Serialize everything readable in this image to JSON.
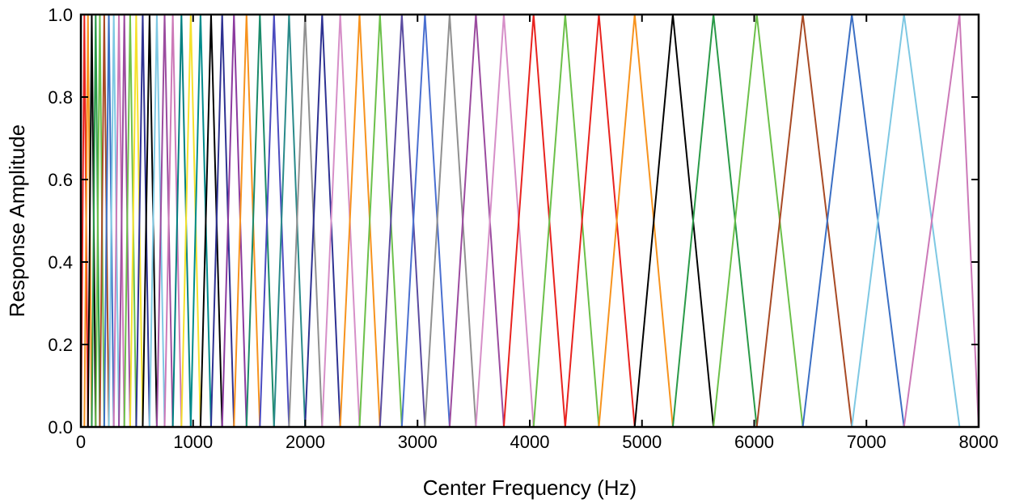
{
  "chart_data": {
    "type": "line",
    "title": "",
    "xlabel": "Center Frequency (Hz)",
    "ylabel": "Response Amplitude",
    "xlim": [
      0,
      8000
    ],
    "ylim": [
      0,
      1
    ],
    "x_ticks": [
      0,
      1000,
      2000,
      3000,
      4000,
      5000,
      6000,
      7000,
      8000
    ],
    "y_ticks": [
      "0.0",
      "0.2",
      "0.4",
      "0.6",
      "0.8",
      "1.0"
    ],
    "grid": false,
    "legend": "none",
    "description_of_series": "triangular mel filter bank; each triangle rises from the previous center to 1.0 at its own center and falls to 0 at the next center",
    "filter_centers": [
      0,
      31,
      63,
      97,
      132,
      169,
      208,
      249,
      293,
      339,
      387,
      439,
      493,
      551,
      612,
      677,
      746,
      819,
      896,
      979,
      1066,
      1160,
      1259,
      1364,
      1476,
      1595,
      1721,
      1855,
      1998,
      2150,
      2311,
      2483,
      2665,
      2860,
      3066,
      3286,
      3520,
      3769,
      4034,
      4316,
      4616,
      4935,
      5275,
      5637,
      6023,
      6433,
      6870,
      7335,
      7830,
      8000
    ],
    "colors": [
      "#e8231f",
      "#f7931e",
      "#000000",
      "#2a9a48",
      "#6cc04a",
      "#a84a25",
      "#3b6fc4",
      "#7ec8e3",
      "#cc79b8",
      "#9b4b9f",
      "#6cc04a",
      "#f5e12b",
      "#2e3192",
      "#000000",
      "#7ec8e3",
      "#9b4b9f",
      "#cc79b8",
      "#008080",
      "#f5e12b",
      "#008b8b",
      "#000000",
      "#2e3192",
      "#8b3a9f",
      "#f7931e",
      "#1a8a6a",
      "#4b4bbf",
      "#2a8a8a",
      "#909090",
      "#2e3192",
      "#d68fc8",
      "#f7931e",
      "#6cc04a",
      "#5a4ba0",
      "#4a6fd0",
      "#909090",
      "#9b4b9f",
      "#d68fc8",
      "#e8231f",
      "#6cc04a"
    ]
  }
}
